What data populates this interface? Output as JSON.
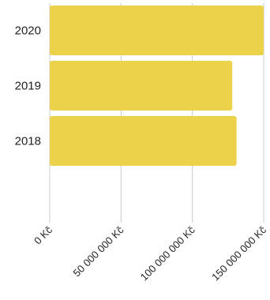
{
  "chart_data": {
    "type": "bar",
    "orientation": "horizontal",
    "categories": [
      "2020",
      "2019",
      "2018"
    ],
    "values": [
      150000000,
      128000000,
      131000000
    ],
    "xlim": [
      0,
      150000000
    ],
    "xticks": [
      0,
      50000000,
      100000000,
      150000000
    ],
    "xtick_labels": [
      "0 Kč",
      "50 000 000 Kč",
      "100 000 000 Kč",
      "150 000 000 Kč"
    ],
    "grid": "vertical",
    "legend": "none",
    "bar_color": "#ecd24a",
    "grid_color": "#cccccc"
  }
}
